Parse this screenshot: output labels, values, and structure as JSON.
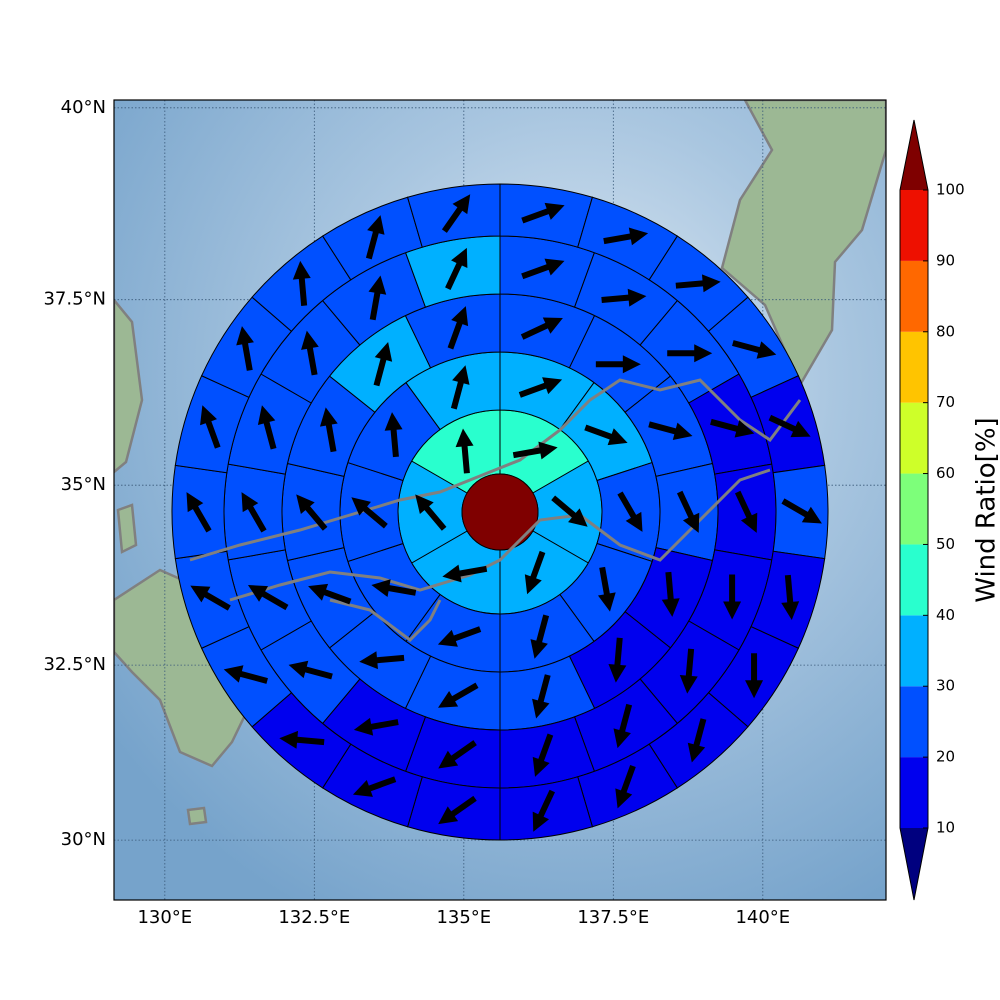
{
  "chart_data": {
    "type": "polar-grid-map",
    "xlim": [
      129.15,
      142.06
    ],
    "ylim": [
      29.13,
      40.1
    ],
    "xticks": [
      {
        "value": 130,
        "label": "130°E"
      },
      {
        "value": 132.5,
        "label": "132.5°E"
      },
      {
        "value": 135,
        "label": "135°E"
      },
      {
        "value": 137.5,
        "label": "137.5°E"
      },
      {
        "value": 140,
        "label": "140°E"
      }
    ],
    "yticks": [
      {
        "value": 30,
        "label": "30°N"
      },
      {
        "value": 32.5,
        "label": "32.5°N"
      },
      {
        "value": 35,
        "label": "35°N"
      },
      {
        "value": 37.5,
        "label": "37.5°N"
      },
      {
        "value": 40,
        "label": "40°N"
      }
    ],
    "grid": true,
    "center_value": 110,
    "rings": [
      {
        "values": [
          42,
          33,
          33,
          32,
          33,
          43
        ],
        "directions": [
          80,
          130,
          200,
          260,
          320,
          355
        ]
      },
      {
        "values": [
          34,
          33,
          24,
          24,
          25,
          23,
          24,
          25,
          23,
          34
        ],
        "directions": [
          70,
          110,
          150,
          170,
          195,
          250,
          280,
          310,
          355,
          15
        ]
      },
      {
        "values": [
          22,
          21,
          21,
          22,
          17,
          16,
          22,
          22,
          23,
          22,
          23,
          24,
          33,
          22
        ],
        "directions": [
          65,
          90,
          105,
          155,
          175,
          185,
          195,
          240,
          265,
          290,
          320,
          350,
          15,
          20
        ]
      },
      {
        "values": [
          22,
          22,
          21,
          17,
          17,
          16,
          15,
          15,
          15,
          16,
          16,
          22,
          23,
          22,
          23,
          22,
          23,
          32
        ],
        "directions": [
          70,
          85,
          90,
          105,
          155,
          180,
          185,
          195,
          200,
          235,
          260,
          285,
          300,
          330,
          345,
          350,
          10,
          25
        ]
      },
      {
        "values": [
          22,
          23,
          22,
          21,
          18,
          21,
          17,
          16,
          15,
          14,
          14,
          15,
          16,
          17,
          21,
          22,
          23,
          22,
          24,
          23,
          22,
          23
        ],
        "directions": [
          70,
          80,
          85,
          105,
          115,
          120,
          175,
          180,
          195,
          200,
          205,
          235,
          250,
          275,
          285,
          300,
          330,
          340,
          350,
          355,
          15,
          35
        ]
      }
    ],
    "colorbar": {
      "label": "Wind Ratio[%]",
      "ticks": [
        10,
        20,
        30,
        40,
        50,
        60,
        70,
        80,
        90,
        100
      ],
      "colors": [
        "#0000ee",
        "#0050ff",
        "#00b0ff",
        "#29ffce",
        "#7dff7a",
        "#ceff29",
        "#ffc400",
        "#ff6800",
        "#ee1000"
      ],
      "under_color": "#00007f",
      "over_color": "#7f0000"
    }
  }
}
